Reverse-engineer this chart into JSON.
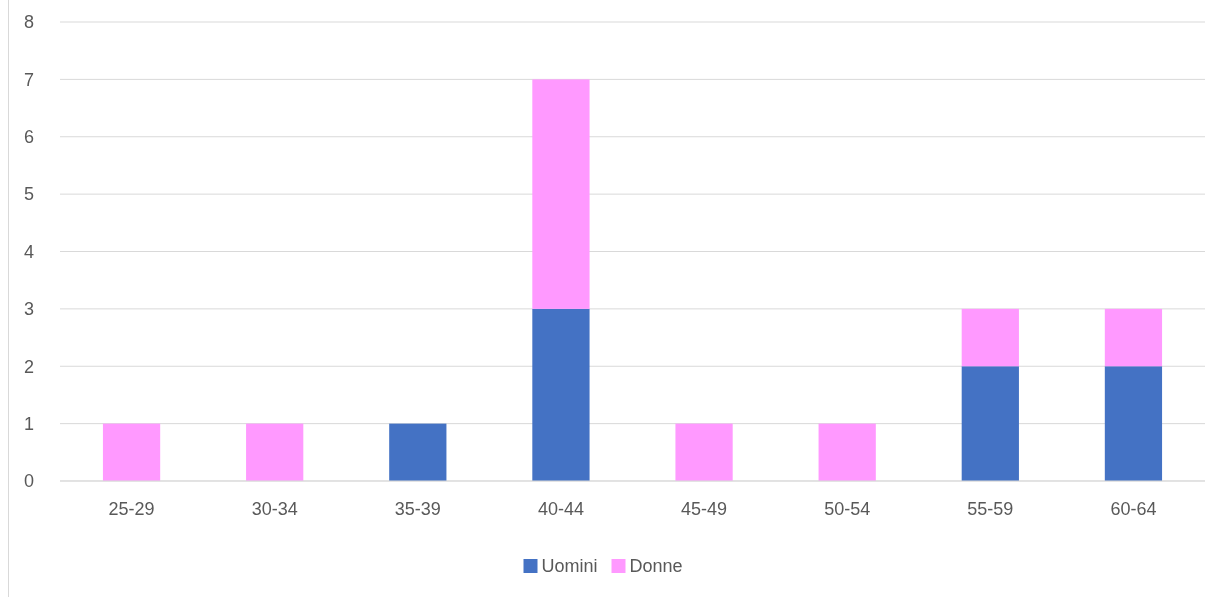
{
  "chart_data": {
    "type": "bar",
    "stacked": true,
    "categories": [
      "25-29",
      "30-34",
      "35-39",
      "40-44",
      "45-49",
      "50-54",
      "55-59",
      "60-64"
    ],
    "series": [
      {
        "name": "Uomini",
        "color": "#4472c4",
        "values": [
          0,
          0,
          1,
          3,
          0,
          0,
          2,
          2
        ]
      },
      {
        "name": "Donne",
        "color": "#ff99ff",
        "values": [
          1,
          1,
          0,
          4,
          1,
          1,
          1,
          1
        ]
      }
    ],
    "ylim": [
      0,
      8
    ],
    "yticks": [
      0,
      1,
      2,
      3,
      4,
      5,
      6,
      7,
      8
    ],
    "grid": "y",
    "legend": "bottom"
  }
}
